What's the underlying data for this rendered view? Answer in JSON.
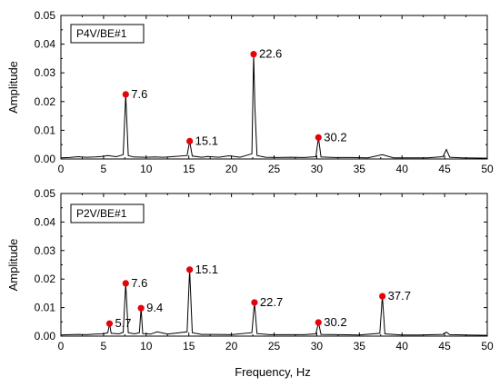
{
  "chart_data": [
    {
      "type": "line",
      "legend": "P4V/BE#1",
      "ylabel": "Amplitude",
      "xlabel": "",
      "xlim": [
        0,
        50
      ],
      "ylim": [
        0,
        0.05
      ],
      "xticks": [
        "0",
        "5",
        "10",
        "15",
        "20",
        "25",
        "30",
        "35",
        "40",
        "45",
        "50"
      ],
      "yticks": [
        "0.00",
        "0.01",
        "0.02",
        "0.03",
        "0.04",
        "0.05"
      ],
      "spectrum": [
        [
          0,
          0.0004
        ],
        [
          1,
          0.0005
        ],
        [
          2,
          0.0008
        ],
        [
          3,
          0.0006
        ],
        [
          4,
          0.0007
        ],
        [
          4.8,
          0.0009
        ],
        [
          5.5,
          0.0012
        ],
        [
          6.5,
          0.0008
        ],
        [
          7.3,
          0.0015
        ],
        [
          7.6,
          0.0225
        ],
        [
          7.9,
          0.0012
        ],
        [
          8.5,
          0.0007
        ],
        [
          10,
          0.0006
        ],
        [
          11,
          0.0007
        ],
        [
          12,
          0.0006
        ],
        [
          13,
          0.0008
        ],
        [
          14.8,
          0.0012
        ],
        [
          15.1,
          0.0062
        ],
        [
          15.4,
          0.001
        ],
        [
          16.5,
          0.0006
        ],
        [
          17.2,
          0.0009
        ],
        [
          18.5,
          0.0006
        ],
        [
          19.7,
          0.0011
        ],
        [
          21,
          0.0006
        ],
        [
          22.4,
          0.0018
        ],
        [
          22.6,
          0.0365
        ],
        [
          22.75,
          0.018
        ],
        [
          23,
          0.0012
        ],
        [
          24,
          0.0006
        ],
        [
          25.5,
          0.0005
        ],
        [
          27,
          0.0006
        ],
        [
          28.5,
          0.0005
        ],
        [
          29.9,
          0.0008
        ],
        [
          30.2,
          0.0075
        ],
        [
          30.5,
          0.0007
        ],
        [
          32,
          0.0005
        ],
        [
          34,
          0.0005
        ],
        [
          36,
          0.0004
        ],
        [
          37.7,
          0.0015
        ],
        [
          39,
          0.0004
        ],
        [
          41,
          0.0004
        ],
        [
          43,
          0.0004
        ],
        [
          44.8,
          0.0008
        ],
        [
          45.2,
          0.0033
        ],
        [
          45.6,
          0.0006
        ],
        [
          47,
          0.0004
        ],
        [
          50,
          0.0003
        ]
      ],
      "peaks": [
        {
          "x": 7.6,
          "y": 0.0225,
          "label": "7.6"
        },
        {
          "x": 15.1,
          "y": 0.0062,
          "label": "15.1"
        },
        {
          "x": 22.6,
          "y": 0.0365,
          "label": "22.6"
        },
        {
          "x": 30.2,
          "y": 0.0075,
          "label": "30.2"
        }
      ]
    },
    {
      "type": "line",
      "legend": "P2V/BE#1",
      "ylabel": "Amplitude",
      "xlabel": "Frequency, Hz",
      "xlim": [
        0,
        50
      ],
      "ylim": [
        0,
        0.05
      ],
      "xticks": [
        "0",
        "5",
        "10",
        "15",
        "20",
        "25",
        "30",
        "35",
        "40",
        "45",
        "50"
      ],
      "yticks": [
        "0.00",
        "0.01",
        "0.02",
        "0.03",
        "0.04",
        "0.05"
      ],
      "spectrum": [
        [
          0,
          0.0004
        ],
        [
          1,
          0.0005
        ],
        [
          2,
          0.0006
        ],
        [
          3,
          0.0005
        ],
        [
          4,
          0.0007
        ],
        [
          5,
          0.0008
        ],
        [
          5.5,
          0.0012
        ],
        [
          5.7,
          0.0044
        ],
        [
          5.9,
          0.001
        ],
        [
          6.8,
          0.0008
        ],
        [
          7.3,
          0.0013
        ],
        [
          7.6,
          0.0185
        ],
        [
          7.9,
          0.0012
        ],
        [
          8.6,
          0.0008
        ],
        [
          9.2,
          0.0012
        ],
        [
          9.4,
          0.0098
        ],
        [
          9.6,
          0.0009
        ],
        [
          10.5,
          0.0007
        ],
        [
          11.3,
          0.0015
        ],
        [
          12.5,
          0.0007
        ],
        [
          14.8,
          0.0015
        ],
        [
          15.1,
          0.0233
        ],
        [
          15.4,
          0.0012
        ],
        [
          16.5,
          0.0006
        ],
        [
          18,
          0.0006
        ],
        [
          20,
          0.0005
        ],
        [
          22.4,
          0.0012
        ],
        [
          22.7,
          0.0118
        ],
        [
          23,
          0.0009
        ],
        [
          24.5,
          0.0005
        ],
        [
          26.5,
          0.0005
        ],
        [
          28.5,
          0.0005
        ],
        [
          29.9,
          0.0008
        ],
        [
          30.2,
          0.0048
        ],
        [
          30.5,
          0.0006
        ],
        [
          32.5,
          0.0005
        ],
        [
          35,
          0.0004
        ],
        [
          37.4,
          0.001
        ],
        [
          37.7,
          0.014
        ],
        [
          38,
          0.0008
        ],
        [
          40,
          0.0004
        ],
        [
          42,
          0.0004
        ],
        [
          44.8,
          0.0006
        ],
        [
          45.2,
          0.0014
        ],
        [
          45.6,
          0.0005
        ],
        [
          47.5,
          0.0004
        ],
        [
          50,
          0.0003
        ]
      ],
      "peaks": [
        {
          "x": 5.7,
          "y": 0.0044,
          "label": "5.7"
        },
        {
          "x": 7.6,
          "y": 0.0185,
          "label": "7.6"
        },
        {
          "x": 9.4,
          "y": 0.0098,
          "label": "9.4"
        },
        {
          "x": 15.1,
          "y": 0.0233,
          "label": "15.1"
        },
        {
          "x": 22.7,
          "y": 0.0118,
          "label": "22.7"
        },
        {
          "x": 30.2,
          "y": 0.0048,
          "label": "30.2"
        },
        {
          "x": 37.7,
          "y": 0.014,
          "label": "37.7"
        }
      ]
    }
  ],
  "colors": {
    "axis": "#000000",
    "trace": "#000000",
    "peak_marker": "#e8000b"
  }
}
